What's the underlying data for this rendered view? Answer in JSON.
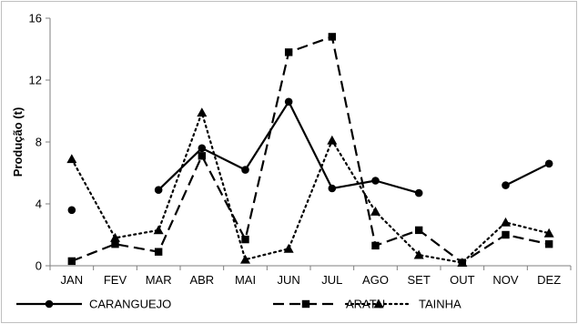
{
  "chart_data": {
    "type": "line",
    "title": "",
    "xlabel": "",
    "ylabel": "Produção (t)",
    "ylim": [
      0,
      16
    ],
    "yticks": [
      0,
      4,
      8,
      12,
      16
    ],
    "grid": false,
    "legend_position": "bottom",
    "categories": [
      "JAN",
      "FEV",
      "MAR",
      "ABR",
      "MAI",
      "JUN",
      "JUL",
      "AGO",
      "SET",
      "OUT",
      "NOV",
      "DEZ"
    ],
    "series": [
      {
        "name": "CARANGUEJO",
        "marker": "circle",
        "dash": "solid",
        "color": "#000000",
        "values": [
          3.6,
          null,
          4.9,
          7.6,
          6.2,
          10.6,
          5.0,
          5.5,
          4.7,
          null,
          5.2,
          6.6
        ]
      },
      {
        "name": "ARATU",
        "marker": "square",
        "dash": "dashed",
        "color": "#000000",
        "values": [
          0.3,
          1.4,
          0.9,
          7.1,
          1.7,
          13.8,
          14.8,
          1.3,
          2.3,
          0.2,
          2.0,
          1.4
        ]
      },
      {
        "name": "TAINHA",
        "marker": "triangle",
        "dash": "dotted",
        "color": "#000000",
        "values": [
          6.9,
          1.8,
          2.3,
          9.9,
          0.4,
          1.1,
          8.1,
          3.5,
          0.7,
          0.2,
          2.8,
          2.1
        ]
      }
    ]
  }
}
